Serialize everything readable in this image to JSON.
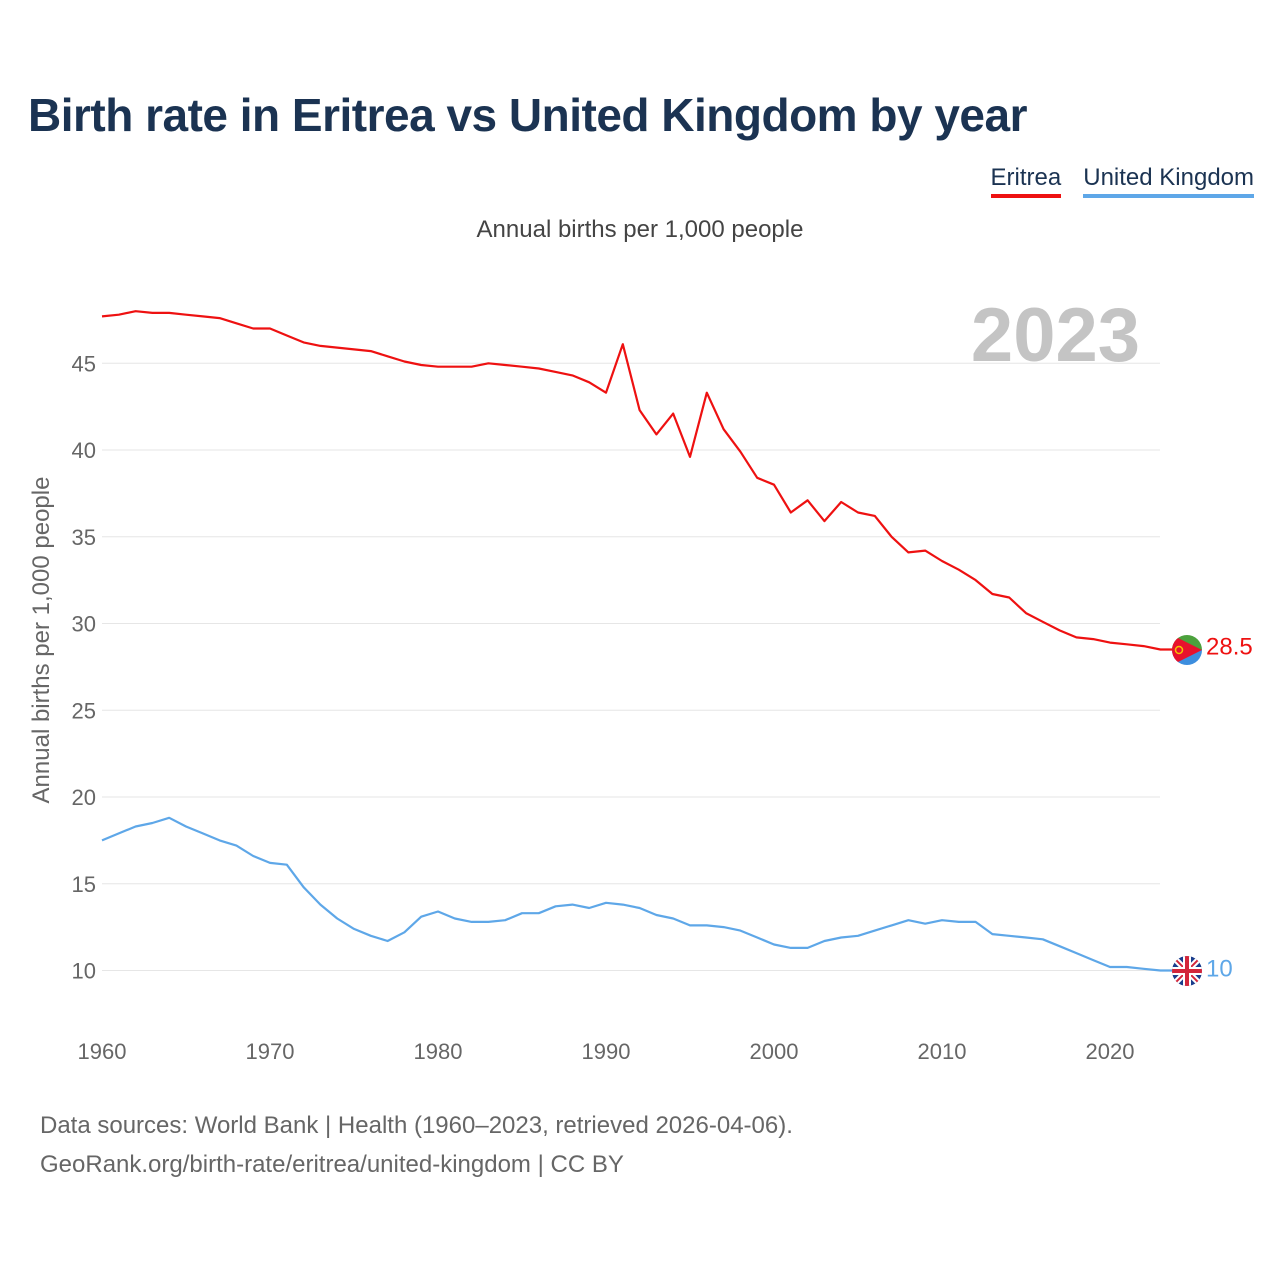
{
  "title": "Birth rate in Eritrea vs United Kingdom by year",
  "subtitle": "Annual births per 1,000 people",
  "year_badge": "2023",
  "source_line1": "Data sources: World Bank | Health (1960–2023, retrieved 2026-04-06).",
  "source_line2": "GeoRank.org/birth-rate/eritrea/united-kingdom | CC BY",
  "colors": {
    "eritrea": "#ee1111",
    "uk": "#5ea7e8",
    "title": "#1b3352",
    "grid": "#e6e6e6",
    "badge": "#c4c4c4"
  },
  "chart_data": {
    "type": "line",
    "title": "Birth rate in Eritrea vs United Kingdom by year",
    "xlabel": "",
    "ylabel": "Annual births per 1,000 people",
    "xlim": [
      1960,
      2024
    ],
    "ylim": [
      7.5,
      49
    ],
    "x_ticks": [
      1960,
      1970,
      1980,
      1990,
      2000,
      2010,
      2020
    ],
    "y_ticks": [
      10,
      15,
      20,
      25,
      30,
      35,
      40,
      45
    ],
    "grid": true,
    "legend_position": "top-right",
    "x": [
      1960,
      1961,
      1962,
      1963,
      1964,
      1965,
      1966,
      1967,
      1968,
      1969,
      1970,
      1971,
      1972,
      1973,
      1974,
      1975,
      1976,
      1977,
      1978,
      1979,
      1980,
      1981,
      1982,
      1983,
      1984,
      1985,
      1986,
      1987,
      1988,
      1989,
      1990,
      1991,
      1992,
      1993,
      1994,
      1995,
      1996,
      1997,
      1998,
      1999,
      2000,
      2001,
      2002,
      2003,
      2004,
      2005,
      2006,
      2007,
      2008,
      2009,
      2010,
      2011,
      2012,
      2013,
      2014,
      2015,
      2016,
      2017,
      2018,
      2019,
      2020,
      2021,
      2022,
      2023
    ],
    "series": [
      {
        "name": "Eritrea",
        "color": "#ee1111",
        "end_label": "28.5",
        "values": [
          47.7,
          47.8,
          48.0,
          47.9,
          47.9,
          47.8,
          47.7,
          47.6,
          47.3,
          47.0,
          47.0,
          46.6,
          46.2,
          46.0,
          45.9,
          45.8,
          45.7,
          45.4,
          45.1,
          44.9,
          44.8,
          44.8,
          44.8,
          45.0,
          44.9,
          44.8,
          44.7,
          44.5,
          44.3,
          43.9,
          43.3,
          46.1,
          42.3,
          40.9,
          42.1,
          39.6,
          43.3,
          41.2,
          39.9,
          38.4,
          38.0,
          36.4,
          37.1,
          35.9,
          37.0,
          36.4,
          36.2,
          35.0,
          34.1,
          34.2,
          33.6,
          33.1,
          32.5,
          31.7,
          31.5,
          30.6,
          30.1,
          29.6,
          29.2,
          29.1,
          28.9,
          28.8,
          28.7,
          28.5
        ]
      },
      {
        "name": "United Kingdom",
        "color": "#5ea7e8",
        "end_label": "10",
        "values": [
          17.5,
          17.9,
          18.3,
          18.5,
          18.8,
          18.3,
          17.9,
          17.5,
          17.2,
          16.6,
          16.2,
          16.1,
          14.8,
          13.8,
          13.0,
          12.4,
          12.0,
          11.7,
          12.2,
          13.1,
          13.4,
          13.0,
          12.8,
          12.8,
          12.9,
          13.3,
          13.3,
          13.7,
          13.8,
          13.6,
          13.9,
          13.8,
          13.6,
          13.2,
          13.0,
          12.6,
          12.6,
          12.5,
          12.3,
          11.9,
          11.5,
          11.3,
          11.3,
          11.7,
          11.9,
          12.0,
          12.3,
          12.6,
          12.9,
          12.7,
          12.9,
          12.8,
          12.8,
          12.1,
          12.0,
          11.9,
          11.8,
          11.4,
          11.0,
          10.6,
          10.2,
          10.2,
          10.1,
          10.0
        ]
      }
    ]
  }
}
